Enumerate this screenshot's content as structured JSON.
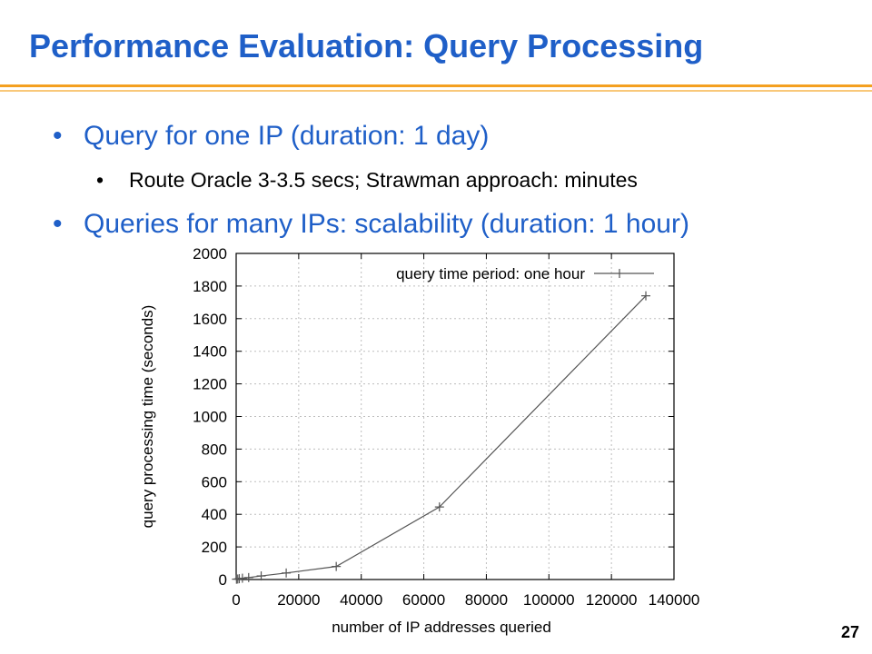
{
  "slide": {
    "title": "Performance Evaluation: Query Processing",
    "bullets": [
      "Query for one IP (duration: 1 day)",
      "Queries for many IPs: scalability (duration: 1 hour)"
    ],
    "sub_bullets": [
      "Route Oracle 3-3.5 secs; Strawman approach: minutes"
    ],
    "bullet_glyph": "•",
    "page_number": "27",
    "colors": {
      "title": "#1f5fc8",
      "accent": "#f4a020",
      "accent_light": "#f9c87a"
    }
  },
  "chart_data": {
    "type": "line",
    "title": "",
    "xlabel": "number of IP addresses queried",
    "ylabel": "query processing time (seconds)",
    "xlim": [
      0,
      140000
    ],
    "ylim": [
      0,
      2000
    ],
    "xticks": [
      0,
      20000,
      40000,
      60000,
      80000,
      100000,
      120000,
      140000
    ],
    "yticks": [
      0,
      200,
      400,
      600,
      800,
      1000,
      1200,
      1400,
      1600,
      1800,
      2000
    ],
    "grid": true,
    "legend_position": "top-right",
    "series": [
      {
        "name": "query time period: one hour",
        "marker": "+",
        "color": "#555555",
        "x": [
          100,
          500,
          1000,
          2000,
          4000,
          8000,
          16000,
          32000,
          65000,
          131000
        ],
        "y": [
          2,
          3,
          5,
          8,
          12,
          22,
          40,
          80,
          445,
          1740
        ]
      }
    ]
  }
}
